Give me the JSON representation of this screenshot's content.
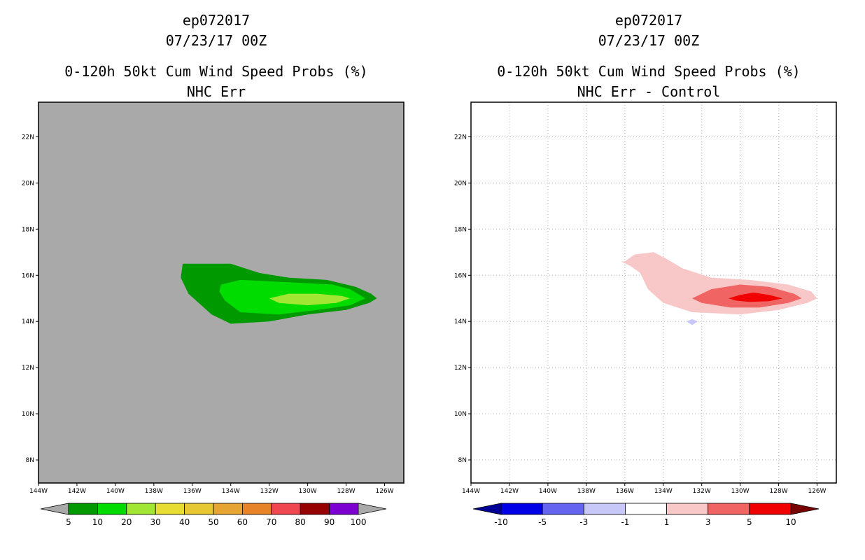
{
  "chart_data": [
    {
      "type": "filled-contour map",
      "storm_id": "ep072017",
      "datetime": "07/23/17 00Z",
      "title": "0-120h 50kt Cum Wind Speed Probs (%)",
      "subtitle": "NHC Err",
      "xlim": [
        -144,
        -125
      ],
      "ylim": [
        7,
        23.5
      ],
      "lon_ticks": [
        -144,
        -142,
        -140,
        -138,
        -136,
        -134,
        -132,
        -130,
        -128,
        -126
      ],
      "lon_tick_labels": [
        "144W",
        "142W",
        "140W",
        "138W",
        "136W",
        "134W",
        "132W",
        "130W",
        "128W",
        "126W"
      ],
      "lat_ticks": [
        8,
        10,
        12,
        14,
        16,
        18,
        20,
        22
      ],
      "lat_tick_labels": [
        "8N",
        "10N",
        "12N",
        "14N",
        "16N",
        "18N",
        "20N",
        "22N"
      ],
      "grid": false,
      "background_color": "#a9a9a9",
      "colorbar": {
        "levels": [
          "5",
          "10",
          "20",
          "30",
          "40",
          "50",
          "60",
          "70",
          "80",
          "90",
          "100"
        ],
        "colors": [
          "#a9a9a9",
          "#009a00",
          "#00dc00",
          "#a0e632",
          "#e6dc32",
          "#e6c832",
          "#e6a532",
          "#e68228",
          "#f04650",
          "#960000",
          "#7d00d2",
          "#a9a9a9"
        ]
      },
      "contours": [
        {
          "level": 5,
          "color": "#009a00",
          "polygon": [
            [
              -136.5,
              16.5
            ],
            [
              -135.6,
              16.5
            ],
            [
              -134.0,
              16.5
            ],
            [
              -132.5,
              16.1
            ],
            [
              -131.0,
              15.9
            ],
            [
              -129.0,
              15.8
            ],
            [
              -127.5,
              15.5
            ],
            [
              -126.7,
              15.2
            ],
            [
              -126.4,
              15.0
            ],
            [
              -126.8,
              14.8
            ],
            [
              -128.0,
              14.5
            ],
            [
              -130.0,
              14.3
            ],
            [
              -132.0,
              14.0
            ],
            [
              -134.0,
              13.9
            ],
            [
              -135.0,
              14.3
            ],
            [
              -136.2,
              15.2
            ],
            [
              -136.6,
              15.9
            ]
          ]
        },
        {
          "level": 10,
          "color": "#00dc00",
          "polygon": [
            [
              -134.5,
              15.6
            ],
            [
              -133.5,
              15.8
            ],
            [
              -131.0,
              15.7
            ],
            [
              -128.7,
              15.6
            ],
            [
              -127.8,
              15.4
            ],
            [
              -127.0,
              15.0
            ],
            [
              -127.8,
              14.7
            ],
            [
              -129.5,
              14.5
            ],
            [
              -131.5,
              14.3
            ],
            [
              -133.5,
              14.4
            ],
            [
              -134.3,
              14.9
            ],
            [
              -134.6,
              15.3
            ]
          ]
        },
        {
          "level": 20,
          "color": "#a0e632",
          "polygon": [
            [
              -132.0,
              15.0
            ],
            [
              -131.0,
              15.2
            ],
            [
              -129.5,
              15.2
            ],
            [
              -128.2,
              15.1
            ],
            [
              -127.8,
              15.0
            ],
            [
              -128.5,
              14.8
            ],
            [
              -130.0,
              14.7
            ],
            [
              -131.5,
              14.8
            ]
          ]
        }
      ]
    },
    {
      "type": "filled-contour map",
      "storm_id": "ep072017",
      "datetime": "07/23/17 00Z",
      "title": "0-120h 50kt Cum Wind Speed Probs (%)",
      "subtitle": "NHC Err - Control",
      "xlim": [
        -144,
        -125
      ],
      "ylim": [
        7,
        23.5
      ],
      "lon_ticks": [
        -144,
        -142,
        -140,
        -138,
        -136,
        -134,
        -132,
        -130,
        -128,
        -126
      ],
      "lon_tick_labels": [
        "144W",
        "142W",
        "140W",
        "138W",
        "136W",
        "134W",
        "132W",
        "130W",
        "128W",
        "126W"
      ],
      "lat_ticks": [
        8,
        10,
        12,
        14,
        16,
        18,
        20,
        22
      ],
      "lat_tick_labels": [
        "8N",
        "10N",
        "12N",
        "14N",
        "16N",
        "18N",
        "20N",
        "22N"
      ],
      "grid": true,
      "background_color": "#ffffff",
      "colorbar": {
        "levels": [
          "-10",
          "-5",
          "-3",
          "-1",
          "1",
          "3",
          "5",
          "10"
        ],
        "colors": [
          "#000096",
          "#0000e6",
          "#6464f0",
          "#c8c8f8",
          "#ffffff",
          "#f8c8c8",
          "#f06464",
          "#f00000",
          "#780000"
        ]
      },
      "contours": [
        {
          "level": 1,
          "color": "#f8c8c8",
          "polygon": [
            [
              -136.0,
              16.6
            ],
            [
              -135.5,
              16.9
            ],
            [
              -134.5,
              17.0
            ],
            [
              -133.8,
              16.7
            ],
            [
              -133.0,
              16.3
            ],
            [
              -131.5,
              15.9
            ],
            [
              -129.5,
              15.8
            ],
            [
              -127.5,
              15.6
            ],
            [
              -126.3,
              15.3
            ],
            [
              -126.0,
              15.0
            ],
            [
              -126.5,
              14.8
            ],
            [
              -128.0,
              14.5
            ],
            [
              -130.0,
              14.3
            ],
            [
              -132.5,
              14.4
            ],
            [
              -134.0,
              14.8
            ],
            [
              -134.8,
              15.4
            ],
            [
              -135.2,
              16.1
            ],
            [
              -135.7,
              16.4
            ],
            [
              -136.2,
              16.6
            ]
          ]
        },
        {
          "level": -1,
          "color": "#c8c8f8",
          "polygon": [
            [
              -132.8,
              14.0
            ],
            [
              -132.5,
              13.85
            ],
            [
              -132.2,
              14.0
            ],
            [
              -132.5,
              14.1
            ]
          ]
        },
        {
          "level": 3,
          "color": "#f06464",
          "polygon": [
            [
              -132.5,
              15.0
            ],
            [
              -131.5,
              15.4
            ],
            [
              -130.0,
              15.6
            ],
            [
              -128.5,
              15.5
            ],
            [
              -127.2,
              15.2
            ],
            [
              -126.8,
              15.0
            ],
            [
              -127.5,
              14.8
            ],
            [
              -129.0,
              14.6
            ],
            [
              -130.5,
              14.6
            ],
            [
              -132.0,
              14.8
            ]
          ]
        },
        {
          "level": 5,
          "color": "#f00000",
          "polygon": [
            [
              -130.6,
              15.0
            ],
            [
              -130.0,
              15.15
            ],
            [
              -129.3,
              15.25
            ],
            [
              -128.5,
              15.15
            ],
            [
              -127.8,
              15.0
            ],
            [
              -128.5,
              14.88
            ],
            [
              -129.5,
              14.85
            ],
            [
              -130.2,
              14.9
            ]
          ]
        }
      ]
    }
  ]
}
